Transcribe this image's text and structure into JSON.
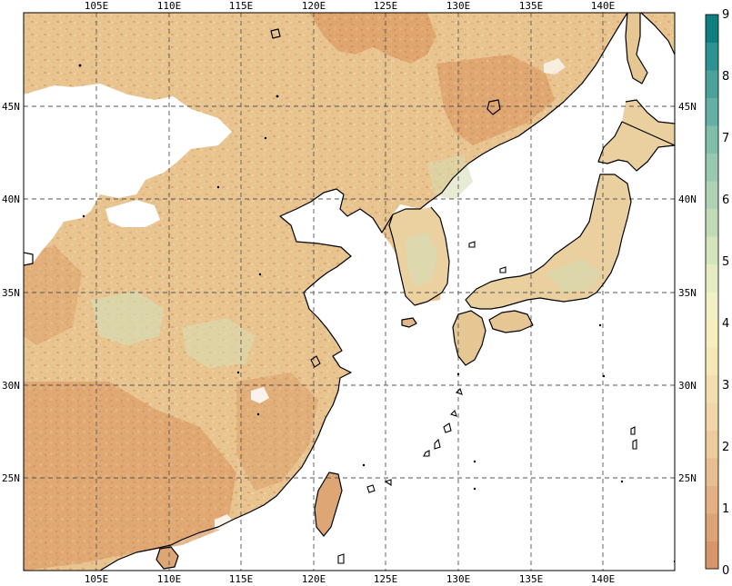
{
  "map": {
    "lon_ticks": [
      "105E",
      "110E",
      "115E",
      "120E",
      "125E",
      "130E",
      "135E",
      "140E"
    ],
    "lat_ticks": [
      "45N",
      "40N",
      "35N",
      "30N",
      "25N"
    ],
    "lon_range": [
      100,
      145
    ],
    "lat_range": [
      20,
      50
    ],
    "grid_style": "dashed"
  },
  "colorbar": {
    "min": 0,
    "max": 9,
    "labels": [
      "0",
      "1",
      "2",
      "3",
      "4",
      "5",
      "6",
      "7",
      "8",
      "9"
    ],
    "colors": [
      "#d8956a",
      "#dea277",
      "#e3b084",
      "#e8bd91",
      "#edcb9d",
      "#f1d6a8",
      "#f3dfae",
      "#f5e8b4",
      "#f6efbd",
      "#f2f1c5",
      "#e4ecc0",
      "#d4e4bb",
      "#c2dbb7",
      "#aed2b3",
      "#98c8b0",
      "#80bdab",
      "#65b0a4",
      "#4aa29b",
      "#2e9290",
      "#0f7e7e"
    ]
  },
  "colors": {
    "land_base": "#e8c590",
    "land_dark": "#d6965f",
    "land_green": "#cfd8b0",
    "missing": "#ffffff",
    "ocean": "#ffffff"
  }
}
